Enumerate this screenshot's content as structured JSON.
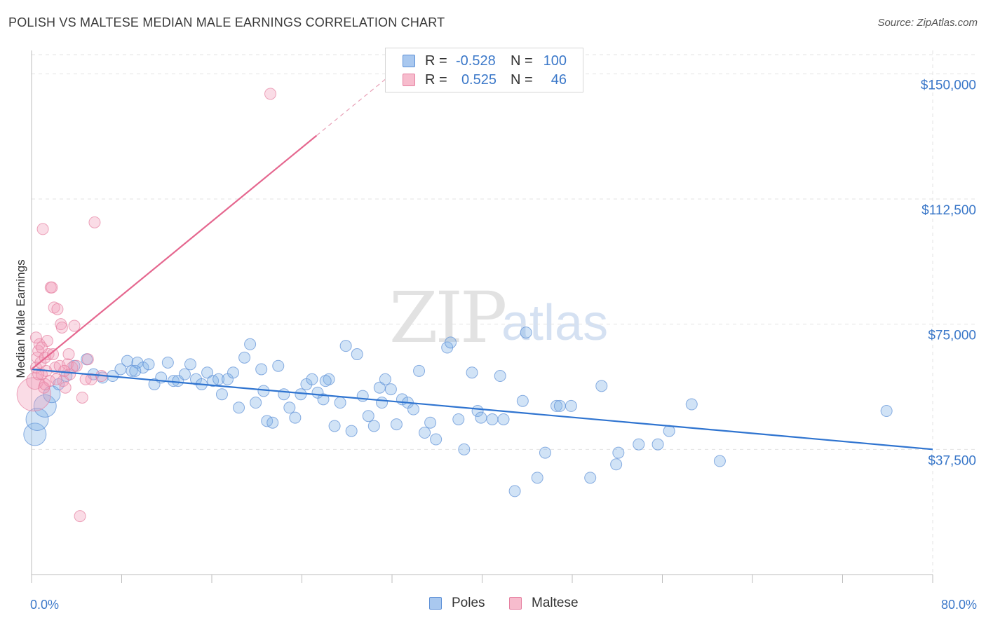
{
  "header": {
    "title": "POLISH VS MALTESE MEDIAN MALE EARNINGS CORRELATION CHART",
    "source": "Source: ZipAtlas.com"
  },
  "watermark": {
    "zip": "ZIP",
    "atlas": "atlas"
  },
  "legend": {
    "rows": [
      {
        "r_label": "R =",
        "r_value": "-0.528",
        "n_label": "N =",
        "n_value": "100",
        "color": "#a9c8ef",
        "border": "#5b8fd6"
      },
      {
        "r_label": "R =",
        "r_value": "0.525",
        "n_label": "N =",
        "n_value": "46",
        "color": "#f7bccd",
        "border": "#e57fa0"
      }
    ]
  },
  "bottom_legend": [
    {
      "label": "Poles",
      "color": "#a9c8ef",
      "border": "#5b8fd6"
    },
    {
      "label": "Maltese",
      "color": "#f7bccd",
      "border": "#e57fa0"
    }
  ],
  "chart_data": {
    "type": "scatter",
    "ylabel": "Median Male Earnings",
    "xlabel": "",
    "xlim": [
      0,
      80
    ],
    "ylim": [
      0,
      157000
    ],
    "x_tick_labels": [
      "0.0%",
      "80.0%"
    ],
    "y_ticks": [
      {
        "value": 37500,
        "label": "$37,500"
      },
      {
        "value": 75000,
        "label": "$75,000"
      },
      {
        "value": 112500,
        "label": "$112,500"
      },
      {
        "value": 150000,
        "label": "$150,000"
      }
    ],
    "grid": true,
    "series": [
      {
        "name": "Poles",
        "color": "#7aaee6",
        "stroke": "#5b8fd6",
        "trend": {
          "x0": 0,
          "y0": 61500,
          "x1": 80,
          "y1": 37500
        },
        "points": [
          [
            0.3,
            42000,
            2
          ],
          [
            0.5,
            46500,
            2
          ],
          [
            1.2,
            50500,
            2
          ],
          [
            1.8,
            54000,
            1.5
          ],
          [
            2.4,
            57000,
            1
          ],
          [
            3.1,
            59500,
            1
          ],
          [
            3.8,
            62500,
            1
          ],
          [
            4.9,
            64500,
            1
          ],
          [
            5.5,
            60000,
            1
          ],
          [
            6.3,
            59000,
            1
          ],
          [
            7.2,
            59500,
            1
          ],
          [
            7.9,
            61500,
            1
          ],
          [
            8.5,
            64000,
            1
          ],
          [
            8.9,
            61000,
            1
          ],
          [
            9.4,
            63500,
            1
          ],
          [
            9.9,
            62000,
            1
          ],
          [
            10.4,
            63000,
            1
          ],
          [
            10.9,
            57000,
            1
          ],
          [
            11.5,
            59000,
            1
          ],
          [
            12.1,
            63500,
            1
          ],
          [
            12.6,
            58000,
            1
          ],
          [
            13.0,
            58000,
            1
          ],
          [
            13.6,
            60000,
            1
          ],
          [
            14.1,
            63000,
            1
          ],
          [
            14.6,
            58500,
            1
          ],
          [
            15.1,
            57000,
            1
          ],
          [
            15.6,
            60500,
            1
          ],
          [
            16.1,
            58000,
            1
          ],
          [
            16.6,
            58500,
            1
          ],
          [
            16.9,
            54000,
            1
          ],
          [
            17.4,
            58500,
            1
          ],
          [
            17.9,
            60500,
            1
          ],
          [
            18.4,
            50000,
            1
          ],
          [
            18.9,
            65000,
            1
          ],
          [
            19.4,
            69000,
            1
          ],
          [
            19.9,
            51500,
            1
          ],
          [
            20.4,
            61500,
            1
          ],
          [
            20.9,
            46000,
            1
          ],
          [
            21.4,
            45500,
            1
          ],
          [
            21.9,
            62500,
            1
          ],
          [
            22.4,
            54000,
            1
          ],
          [
            22.9,
            50000,
            1
          ],
          [
            23.4,
            47000,
            1
          ],
          [
            23.9,
            54000,
            1
          ],
          [
            24.4,
            57000,
            1
          ],
          [
            24.9,
            58500,
            1
          ],
          [
            25.4,
            54500,
            1
          ],
          [
            25.9,
            52500,
            1
          ],
          [
            26.4,
            58500,
            1
          ],
          [
            26.9,
            44500,
            1
          ],
          [
            27.4,
            51500,
            1
          ],
          [
            27.9,
            68500,
            1
          ],
          [
            28.4,
            43000,
            1
          ],
          [
            28.9,
            66000,
            1
          ],
          [
            29.4,
            53500,
            1
          ],
          [
            29.9,
            47500,
            1
          ],
          [
            30.4,
            44500,
            1
          ],
          [
            30.9,
            56000,
            1
          ],
          [
            31.4,
            58500,
            1
          ],
          [
            31.9,
            55500,
            1
          ],
          [
            32.4,
            45000,
            1
          ],
          [
            32.9,
            52500,
            1
          ],
          [
            33.4,
            51500,
            1
          ],
          [
            33.9,
            49500,
            1
          ],
          [
            34.4,
            61000,
            1
          ],
          [
            34.9,
            42500,
            1
          ],
          [
            35.4,
            45500,
            1
          ],
          [
            35.9,
            40500,
            1
          ],
          [
            36.9,
            68000,
            1
          ],
          [
            37.2,
            69500,
            1
          ],
          [
            37.9,
            46500,
            1
          ],
          [
            38.4,
            37500,
            1
          ],
          [
            39.1,
            60500,
            1
          ],
          [
            39.6,
            49000,
            1
          ],
          [
            39.9,
            47000,
            1
          ],
          [
            40.9,
            46500,
            1
          ],
          [
            41.9,
            46500,
            1
          ],
          [
            41.6,
            59500,
            1
          ],
          [
            42.9,
            25000,
            1
          ],
          [
            43.6,
            52000,
            1
          ],
          [
            43.9,
            72500,
            1
          ],
          [
            44.9,
            29000,
            1
          ],
          [
            45.6,
            36500,
            1
          ],
          [
            46.6,
            50500,
            1
          ],
          [
            46.9,
            50500,
            1
          ],
          [
            47.9,
            50500,
            1
          ],
          [
            49.6,
            29000,
            1
          ],
          [
            50.6,
            56500,
            1
          ],
          [
            51.9,
            33000,
            1
          ],
          [
            52.1,
            36500,
            1
          ],
          [
            53.9,
            39000,
            1
          ],
          [
            55.6,
            39000,
            1
          ],
          [
            56.6,
            43000,
            1
          ],
          [
            58.6,
            51000,
            1
          ],
          [
            61.1,
            34000,
            1
          ],
          [
            75.9,
            49000,
            1
          ],
          [
            31.1,
            51500,
            1
          ],
          [
            26.1,
            58000,
            1
          ],
          [
            20.6,
            55000,
            1
          ],
          [
            9.2,
            61000,
            1
          ]
        ]
      },
      {
        "name": "Maltese",
        "color": "#f29bb6",
        "stroke": "#e57fa0",
        "trend": {
          "x0": 0,
          "y0": 61500,
          "x1": 25.3,
          "y1": 131500
        },
        "trend_dashed": {
          "x0": 25.3,
          "y0": 131500,
          "x1": 32,
          "y1": 150000
        },
        "points": [
          [
            0.2,
            54000,
            3
          ],
          [
            0.3,
            58000,
            1.5
          ],
          [
            0.4,
            62000,
            1
          ],
          [
            0.5,
            65000,
            1
          ],
          [
            0.6,
            67000,
            1
          ],
          [
            0.7,
            69000,
            1
          ],
          [
            0.8,
            63500,
            1
          ],
          [
            0.9,
            60000,
            1
          ],
          [
            1.0,
            103500,
            1
          ],
          [
            1.1,
            56000,
            1
          ],
          [
            1.2,
            65000,
            1
          ],
          [
            1.3,
            61000,
            1
          ],
          [
            1.4,
            70000,
            1
          ],
          [
            1.5,
            66000,
            1
          ],
          [
            1.6,
            58000,
            1
          ],
          [
            1.7,
            86000,
            1
          ],
          [
            1.8,
            86000,
            1
          ],
          [
            1.9,
            66000,
            1
          ],
          [
            2.0,
            80000,
            1
          ],
          [
            2.1,
            62000,
            1
          ],
          [
            2.3,
            79500,
            1
          ],
          [
            2.5,
            62500,
            1
          ],
          [
            2.6,
            75000,
            1
          ],
          [
            2.7,
            74000,
            1
          ],
          [
            2.8,
            58000,
            1
          ],
          [
            3.0,
            56000,
            1
          ],
          [
            3.2,
            63000,
            1
          ],
          [
            3.4,
            60000,
            1
          ],
          [
            3.6,
            62000,
            1
          ],
          [
            3.8,
            74500,
            1
          ],
          [
            4.0,
            62500,
            1
          ],
          [
            4.3,
            17500,
            1
          ],
          [
            4.5,
            53000,
            1
          ],
          [
            5.0,
            64500,
            1
          ],
          [
            5.3,
            58500,
            1
          ],
          [
            5.6,
            105500,
            1
          ],
          [
            6.2,
            59500,
            1
          ],
          [
            21.2,
            144000,
            1
          ],
          [
            0.6,
            60000,
            1
          ],
          [
            0.9,
            68000,
            1
          ],
          [
            1.2,
            57000,
            1
          ],
          [
            2.2,
            58500,
            1
          ],
          [
            2.9,
            61000,
            1
          ],
          [
            3.3,
            66000,
            1
          ],
          [
            4.8,
            58500,
            1
          ],
          [
            0.4,
            71000,
            1
          ]
        ]
      }
    ]
  }
}
